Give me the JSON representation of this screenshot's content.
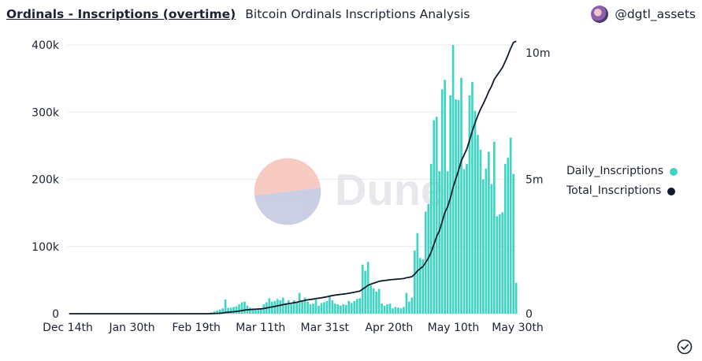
{
  "header": {
    "title": "Ordinals - Inscriptions (overtime)",
    "subtitle": "Bitcoin Ordinals Inscriptions Analysis",
    "author": "@dgtl_assets"
  },
  "watermark": {
    "text": "Dune"
  },
  "colors": {
    "bars": "#40d5c2",
    "line": "#0f1b2d",
    "grid": "#e9ebef",
    "logo_top": "#f7c9bf",
    "logo_bottom": "#c9cbe3"
  },
  "legend": {
    "items": [
      {
        "label": "Daily_Inscriptions",
        "color": "#40d5c2"
      },
      {
        "label": "Total_Inscriptions",
        "color": "#0f1b2d"
      }
    ]
  },
  "chart_data": {
    "type": "bar+line",
    "title": "Ordinals - Inscriptions (overtime)",
    "x_tick_labels": [
      "Dec 14th",
      "Jan 30th",
      "Feb 19th",
      "Mar 11th",
      "Mar 31st",
      "Apr 20th",
      "May 10th",
      "May 30th"
    ],
    "y_left": {
      "min": 0,
      "max": 400000,
      "ticks": [
        0,
        100000,
        200000,
        300000,
        400000
      ],
      "tick_labels": [
        "0",
        "100k",
        "200k",
        "300k",
        "400k"
      ]
    },
    "y_right": {
      "min": 0,
      "max": 10000000,
      "ticks": [
        0,
        5000000,
        10000000
      ],
      "tick_labels": [
        "0",
        "5m",
        "10m"
      ]
    },
    "series": [
      {
        "name": "Daily_Inscriptions",
        "kind": "bar",
        "axis": "left",
        "values": [
          0,
          0,
          0,
          0,
          0,
          0,
          0,
          0,
          0,
          0,
          0,
          0,
          0,
          0,
          0,
          0,
          0,
          0,
          0,
          0,
          0,
          0,
          0,
          0,
          0,
          0,
          0,
          0,
          0,
          0,
          0,
          0,
          0,
          0,
          0,
          0,
          0,
          0,
          0,
          0,
          0,
          0,
          0,
          0,
          0,
          0,
          0,
          0,
          0,
          0,
          0,
          1000,
          2000,
          3500,
          4500,
          6000,
          8000,
          21000,
          8500,
          9000,
          10000,
          11000,
          14000,
          17000,
          18000,
          12000,
          9000,
          8000,
          6000,
          7000,
          6000,
          14000,
          17000,
          23000,
          18000,
          19000,
          22000,
          20000,
          24000,
          16000,
          20000,
          14000,
          20000,
          16000,
          31000,
          18000,
          24000,
          18000,
          14000,
          15000,
          21000,
          12000,
          16000,
          17000,
          19000,
          27000,
          20000,
          15000,
          14000,
          12000,
          14000,
          13000,
          19000,
          16000,
          19000,
          22000,
          23000,
          73000,
          64000,
          77000,
          42000,
          38000,
          33000,
          37000,
          15000,
          12000,
          14000,
          15000,
          8000,
          10000,
          9000,
          8000,
          10000,
          31000,
          18000,
          24000,
          94000,
          120000,
          83000,
          81000,
          152000,
          163000,
          223000,
          288000,
          293000,
          212000,
          334000,
          348000,
          212000,
          325000,
          400000,
          319000,
          318000,
          351000,
          215000,
          223000,
          325000,
          345000,
          302000,
          266000,
          244000,
          200000,
          216000,
          241000,
          193000,
          256000,
          145000,
          148000,
          151000,
          223000,
          232000,
          262000,
          208000,
          46000
        ]
      },
      {
        "name": "Total_Inscriptions",
        "kind": "line",
        "axis": "right",
        "values": [
          0,
          0,
          0,
          0,
          0,
          0,
          0,
          0,
          0,
          0,
          0,
          0,
          0,
          0,
          0,
          0,
          0,
          0,
          0,
          0,
          0,
          0,
          0,
          0,
          0,
          0,
          0,
          0,
          0,
          0,
          0,
          0,
          0,
          0,
          0,
          0,
          0,
          0,
          0,
          0,
          0,
          0,
          0,
          0,
          0,
          0,
          0,
          0,
          0,
          0,
          0,
          1000,
          3000,
          6500,
          11000,
          17000,
          25000,
          46000,
          54500,
          63500,
          73500,
          84500,
          98500,
          115500,
          133500,
          145500,
          154500,
          162500,
          168500,
          175500,
          181500,
          195500,
          212500,
          235500,
          253500,
          272500,
          294500,
          314500,
          338500,
          354500,
          374500,
          388500,
          408500,
          424500,
          455500,
          473500,
          497500,
          515500,
          529500,
          544500,
          565500,
          577500,
          593500,
          610500,
          629500,
          656500,
          676500,
          691500,
          705500,
          717500,
          731500,
          744500,
          763500,
          779500,
          798500,
          820500,
          843500,
          916500,
          980500,
          1057500,
          1099500,
          1137500,
          1170500,
          1207500,
          1222500,
          1234500,
          1248500,
          1263500,
          1271500,
          1281500,
          1290500,
          1298500,
          1308500,
          1339500,
          1357500,
          1381500,
          1475500,
          1595500,
          1678500,
          1759500,
          1911500,
          2074500,
          2297500,
          2585500,
          2878500,
          3090500,
          3424500,
          3772500,
          3984500,
          4309500,
          4709500,
          5028500,
          5346500,
          5697500,
          5912500,
          6135500,
          6460500,
          6805500,
          7107500,
          7373500,
          7617500,
          7817500,
          8033500,
          8274500,
          8467500,
          8723500,
          8868500,
          9016500,
          9167500,
          9390500,
          9622500,
          9884500,
          10092500,
          10138500
        ]
      }
    ]
  }
}
